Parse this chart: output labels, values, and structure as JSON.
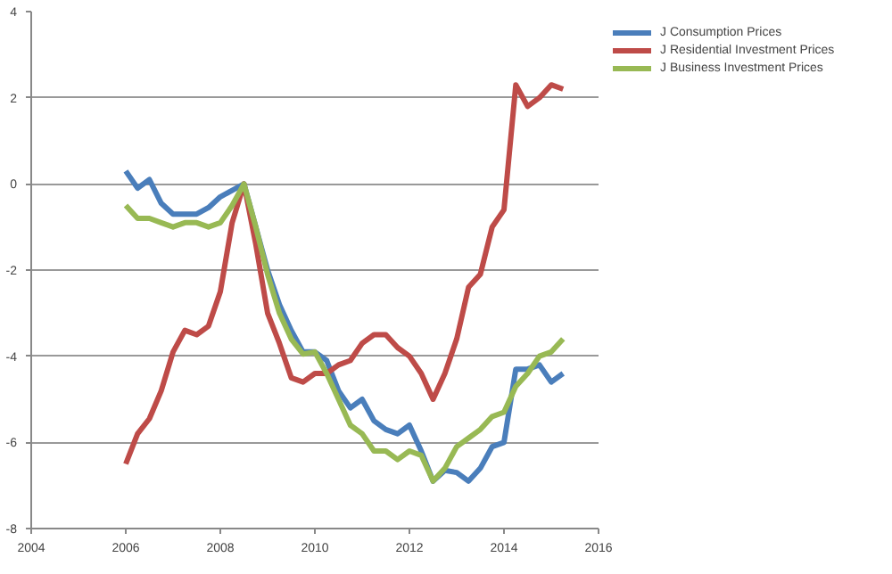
{
  "chart_data": {
    "type": "line",
    "x": [
      2006,
      2006.25,
      2006.5,
      2006.75,
      2007,
      2007.25,
      2007.5,
      2007.75,
      2008,
      2008.25,
      2008.5,
      2008.75,
      2009,
      2009.25,
      2009.5,
      2009.75,
      2010,
      2010.25,
      2010.5,
      2010.75,
      2011,
      2011.25,
      2011.5,
      2011.75,
      2012,
      2012.25,
      2012.5,
      2012.75,
      2013,
      2013.25,
      2013.5,
      2013.75,
      2014,
      2014.25,
      2014.5,
      2014.75,
      2015,
      2015.25
    ],
    "series": [
      {
        "name": "J Consumption Prices",
        "color": "#4a7ebb",
        "values": [
          0.3,
          -0.1,
          0.1,
          -0.45,
          -0.7,
          -0.7,
          -0.7,
          -0.55,
          -0.3,
          -0.15,
          0,
          -1.0,
          -2.0,
          -2.8,
          -3.4,
          -3.9,
          -3.9,
          -4.1,
          -4.8,
          -5.2,
          -5.0,
          -5.5,
          -5.7,
          -5.8,
          -5.6,
          -6.2,
          -6.9,
          -6.65,
          -6.7,
          -6.9,
          -6.6,
          -6.1,
          -6.0,
          -4.3,
          -4.3,
          -4.2,
          -4.6,
          -4.4
        ]
      },
      {
        "name": "J Residential Investment Prices",
        "color": "#be4b48",
        "values": [
          -6.5,
          -5.8,
          -5.45,
          -4.8,
          -3.9,
          -3.4,
          -3.5,
          -3.3,
          -2.5,
          -0.9,
          0,
          -1.4,
          -3.0,
          -3.7,
          -4.5,
          -4.6,
          -4.4,
          -4.4,
          -4.2,
          -4.1,
          -3.7,
          -3.5,
          -3.5,
          -3.8,
          -4.0,
          -4.4,
          -5.0,
          -4.4,
          -3.6,
          -2.4,
          -2.1,
          -1.0,
          -0.6,
          2.3,
          1.8,
          2.0,
          2.3,
          2.2
        ]
      },
      {
        "name": "J Business Investment Prices",
        "color": "#98b954",
        "values": [
          -0.5,
          -0.8,
          -0.8,
          -0.9,
          -1.0,
          -0.9,
          -0.9,
          -1.0,
          -0.9,
          -0.5,
          0,
          -1.0,
          -2.1,
          -3.0,
          -3.6,
          -3.95,
          -3.9,
          -4.4,
          -5.0,
          -5.6,
          -5.8,
          -6.2,
          -6.2,
          -6.4,
          -6.2,
          -6.3,
          -6.9,
          -6.6,
          -6.1,
          -5.9,
          -5.7,
          -5.4,
          -5.3,
          -4.7,
          -4.4,
          -4.0,
          -3.9,
          -3.6
        ]
      }
    ],
    "xlim": [
      2004,
      2016
    ],
    "xticks": [
      2004,
      2006,
      2008,
      2010,
      2012,
      2014,
      2016
    ],
    "ylim": [
      -8,
      4
    ],
    "yticks": [
      -8,
      -6,
      -4,
      -2,
      0,
      2,
      4
    ],
    "grid": "y",
    "legend": "right",
    "marker": "none",
    "line_style": "solid"
  }
}
